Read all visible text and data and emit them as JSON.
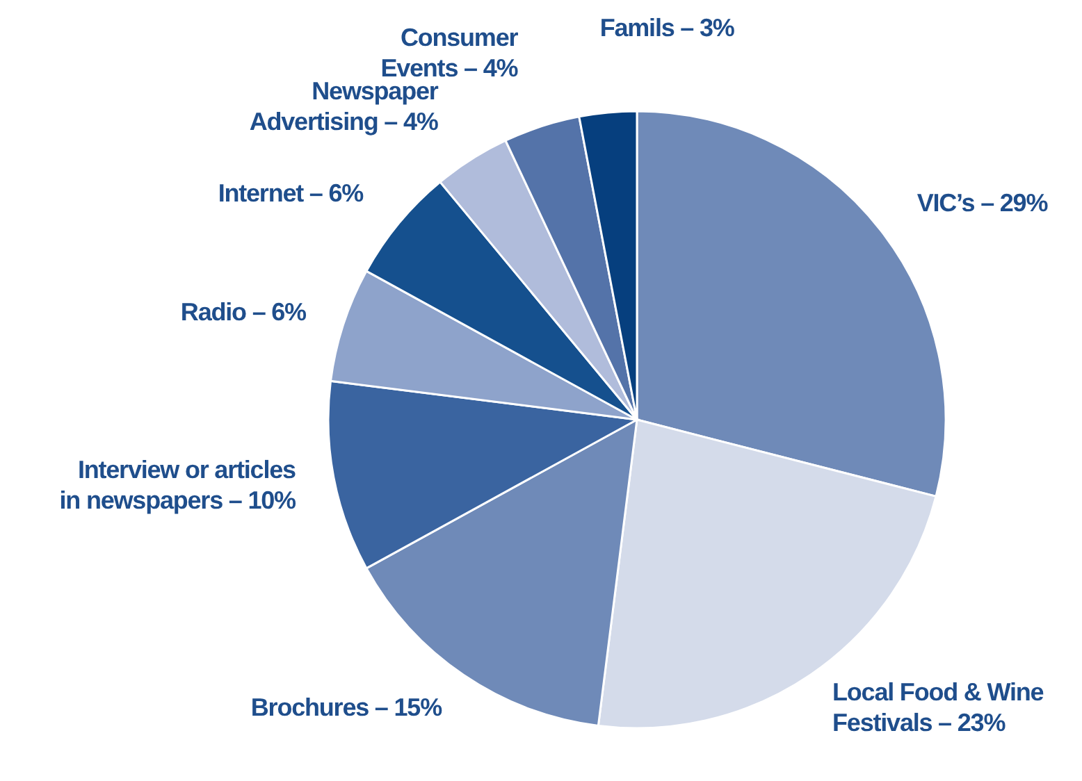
{
  "chart_data": {
    "type": "pie",
    "categories": [
      "VIC’s – 29%",
      "Local Food & Wine\nFestivals – 23%",
      "Brochures – 15%",
      "Interview or articles\nin newspapers – 10%",
      "Radio – 6%",
      "Internet – 6%",
      "Newspaper\nAdvertising – 4%",
      "Consumer\nEvents – 4%",
      "Famils – 3%"
    ],
    "values": [
      29,
      23,
      15,
      10,
      6,
      6,
      4,
      4,
      3
    ],
    "colors": [
      "#6f8ab8",
      "#d4dbea",
      "#6f8ab8",
      "#3a64a0",
      "#8ea3cb",
      "#15508e",
      "#b0bcdb",
      "#5473a9",
      "#063f7e"
    ]
  }
}
